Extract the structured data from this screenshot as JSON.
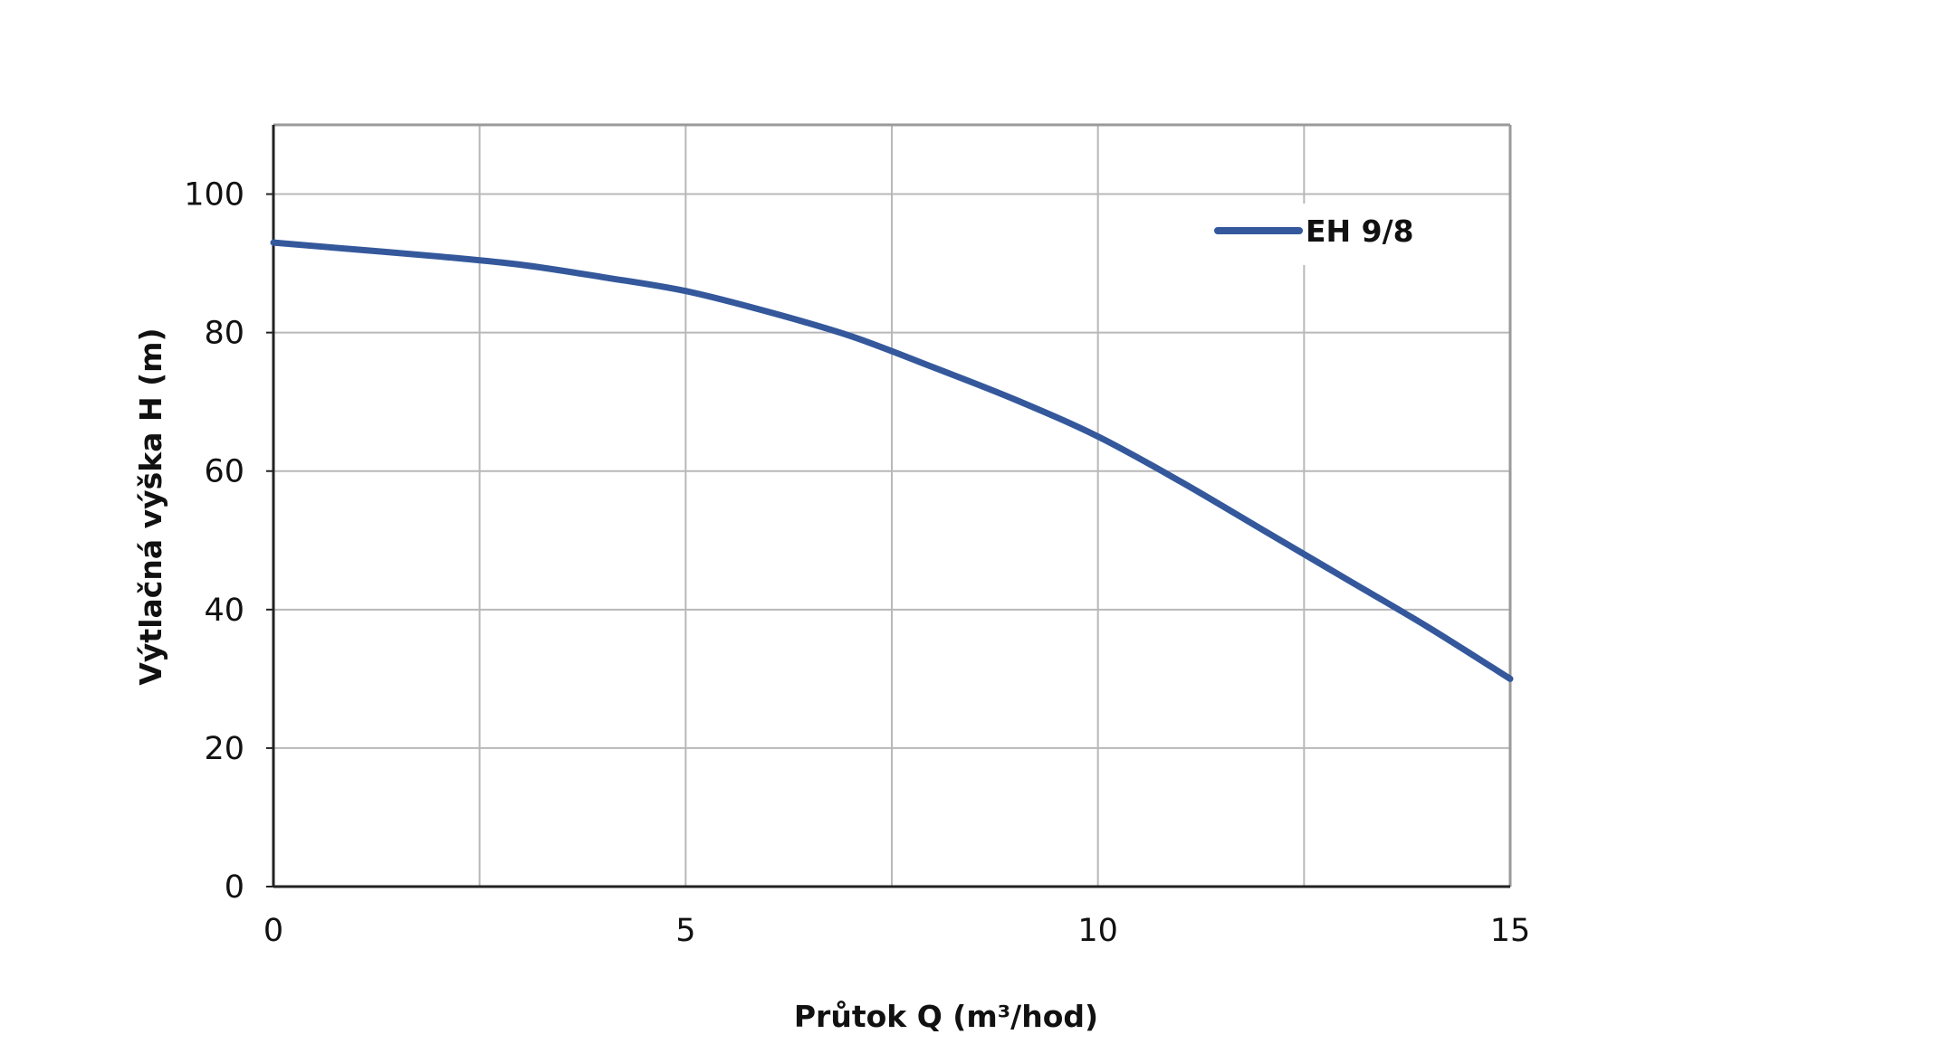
{
  "chart_data": {
    "type": "line",
    "xlabel": "Průtok Q (m³/hod)",
    "ylabel": "Výtlačná výška H (m)",
    "xlim": [
      0,
      15
    ],
    "ylim": [
      0,
      110
    ],
    "x_ticks": [
      "0",
      "5",
      "10",
      "15"
    ],
    "y_ticks": [
      "0",
      "20",
      "40",
      "60",
      "80",
      "100"
    ],
    "grid": true,
    "legend_position": "top-right",
    "series": [
      {
        "name": "EH 9/8",
        "color": "#34589b",
        "x": [
          0,
          1,
          2,
          3,
          4,
          5,
          6,
          7,
          8,
          9,
          10,
          11,
          12,
          13,
          14,
          15
        ],
        "y": [
          93,
          92,
          91,
          89.8,
          88,
          86,
          83,
          79.5,
          75,
          70.3,
          65,
          58.5,
          51.5,
          44.5,
          37.5,
          30
        ]
      }
    ]
  }
}
